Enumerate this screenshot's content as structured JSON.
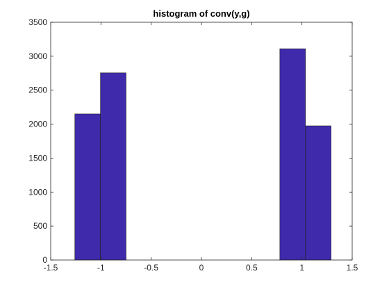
{
  "chart_data": {
    "type": "bar",
    "title": "histogram of conv(y,g)",
    "xlabel": "",
    "ylabel": "",
    "xlim": [
      -1.5,
      1.5
    ],
    "ylim": [
      0,
      3500
    ],
    "xticks": [
      -1.5,
      -1,
      -0.5,
      0,
      0.5,
      1,
      1.5
    ],
    "xtick_labels": [
      "-1.5",
      "-1",
      "-0.5",
      "0",
      "0.5",
      "1",
      "1.5"
    ],
    "yticks": [
      0,
      500,
      1000,
      1500,
      2000,
      2500,
      3000,
      3500
    ],
    "ytick_labels": [
      "0",
      "500",
      "1000",
      "1500",
      "2000",
      "2500",
      "3000",
      "3500"
    ],
    "bin_edges": [
      -1.26,
      -1.005,
      -0.75,
      -0.495,
      -0.24,
      0.015,
      0.27,
      0.525,
      0.78,
      1.035,
      1.29
    ],
    "counts": [
      2150,
      2755,
      0,
      0,
      0,
      0,
      0,
      0,
      3110,
      1975
    ],
    "bar_color": "#3F2AAB",
    "edge_color": "#222222",
    "grid": false
  }
}
